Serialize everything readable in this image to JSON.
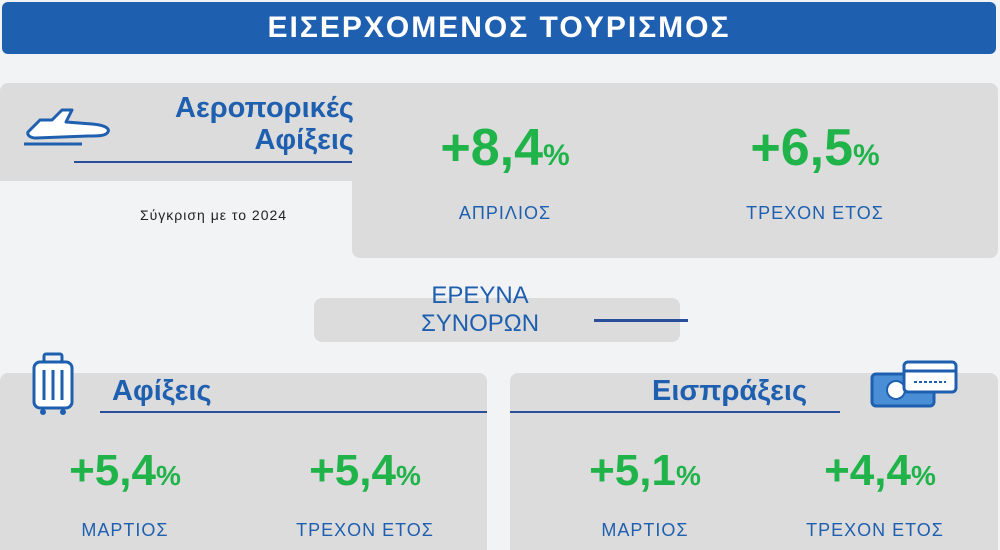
{
  "header": {
    "title": "ΕΙΣΕΡΧΟΜΕΝΟΣ ΤΟΥΡΙΣΜΟΣ"
  },
  "air": {
    "title_line1": "Αεροπορικές",
    "title_line2": "Αφίξεις",
    "comparison": "Σύγκριση με το 2024",
    "stats": [
      {
        "value": "+8,4",
        "unit": "%",
        "label": "ΑΠΡΙΛΙΟΣ"
      },
      {
        "value": "+6,5",
        "unit": "%",
        "label": "ΤΡΕΧΟΝ ΕΤΟΣ"
      }
    ]
  },
  "survey": {
    "line1": "ΕΡΕΥΝΑ",
    "line2": "ΣΥΝΟΡΩΝ"
  },
  "arrivals": {
    "title": "Αφίξεις",
    "stats": [
      {
        "value": "+5,4",
        "unit": "%",
        "label": "ΜΑΡΤΙΟΣ"
      },
      {
        "value": "+5,4",
        "unit": "%",
        "label": "ΤΡΕΧΟΝ ΕΤΟΣ"
      }
    ]
  },
  "receipts": {
    "title": "Εισπράξεις",
    "stats": [
      {
        "value": "+5,1",
        "unit": "%",
        "label": "ΜΑΡΤΙΟΣ"
      },
      {
        "value": "+4,4",
        "unit": "%",
        "label": "ΤΡΕΧΟΝ ΕΤΟΣ"
      }
    ]
  },
  "icons": {
    "air": "airplane-icon",
    "arrivals": "suitcase-icon",
    "receipts": "payment-card-icon"
  },
  "colors": {
    "brand_blue": "#1f5fb0",
    "green": "#1fb34a",
    "panel_gray": "#dcdcdc"
  }
}
